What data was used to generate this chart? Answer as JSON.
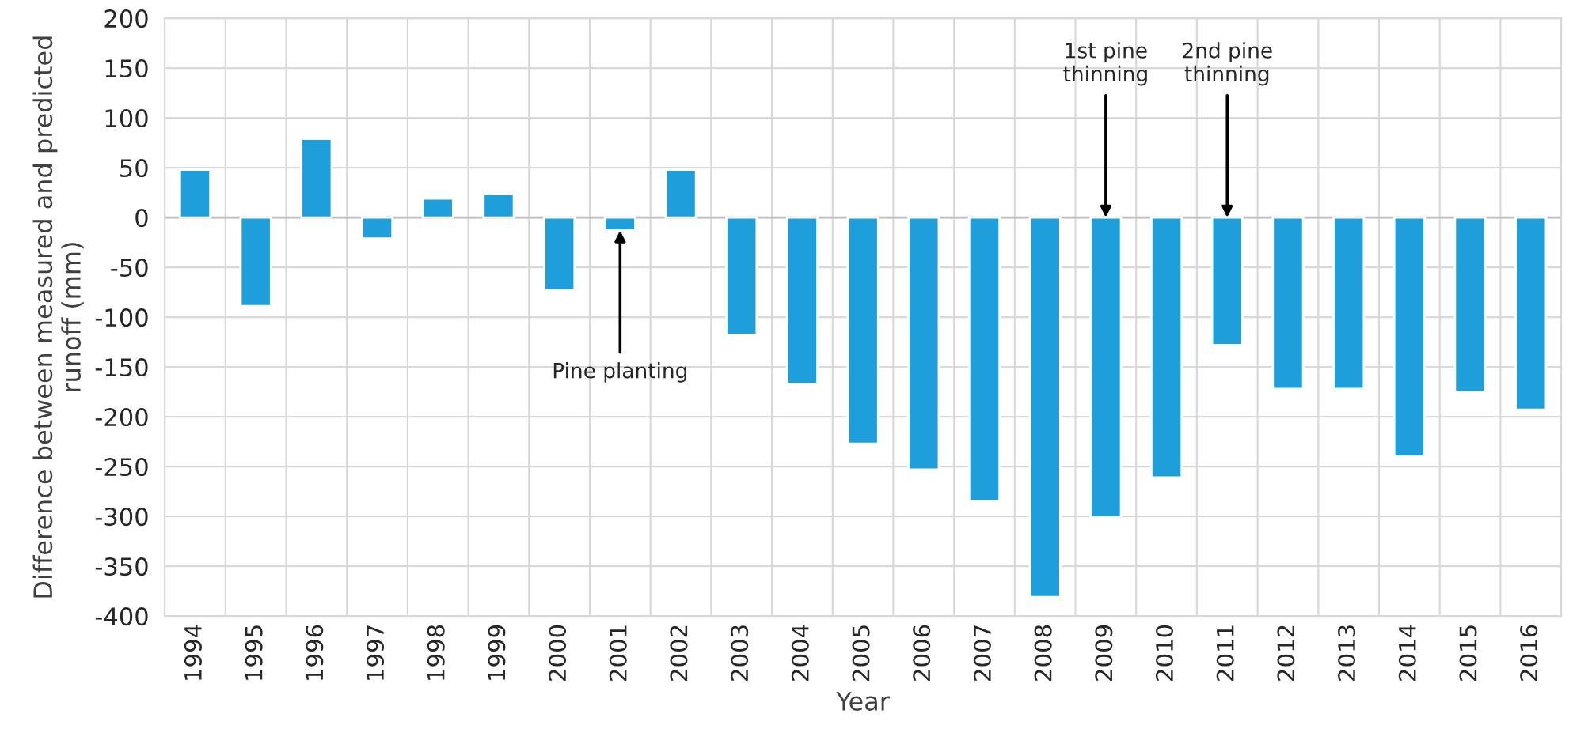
{
  "chart_data": {
    "type": "bar",
    "xlabel": "Year",
    "ylabel": "Difference between measured and predicted runoff (mm)",
    "categories": [
      "1994",
      "1995",
      "1996",
      "1997",
      "1998",
      "1999",
      "2000",
      "2001",
      "2002",
      "2003",
      "2004",
      "2005",
      "2006",
      "2007",
      "2008",
      "2009",
      "2010",
      "2011",
      "2012",
      "2013",
      "2014",
      "2015",
      "2016"
    ],
    "values": [
      48,
      -89,
      79,
      -21,
      19,
      24,
      -73,
      -13,
      48,
      -118,
      -167,
      -227,
      -253,
      -285,
      -381,
      -301,
      -261,
      -128,
      -172,
      -172,
      -240,
      -175,
      -193
    ],
    "color": "#1e9fdc",
    "ylim": [
      -400,
      200
    ],
    "yticks": [
      -400,
      -350,
      -300,
      -250,
      -200,
      -150,
      -100,
      -50,
      0,
      50,
      100,
      150,
      200
    ],
    "grid": true,
    "annotations": [
      {
        "text": "Pine planting",
        "x": "2001",
        "y": -13
      },
      {
        "text": "1st pine\nthinning",
        "x": "2009",
        "y": 0
      },
      {
        "text": "2nd pine\nthinning",
        "x": "2011",
        "y": 0
      }
    ]
  }
}
